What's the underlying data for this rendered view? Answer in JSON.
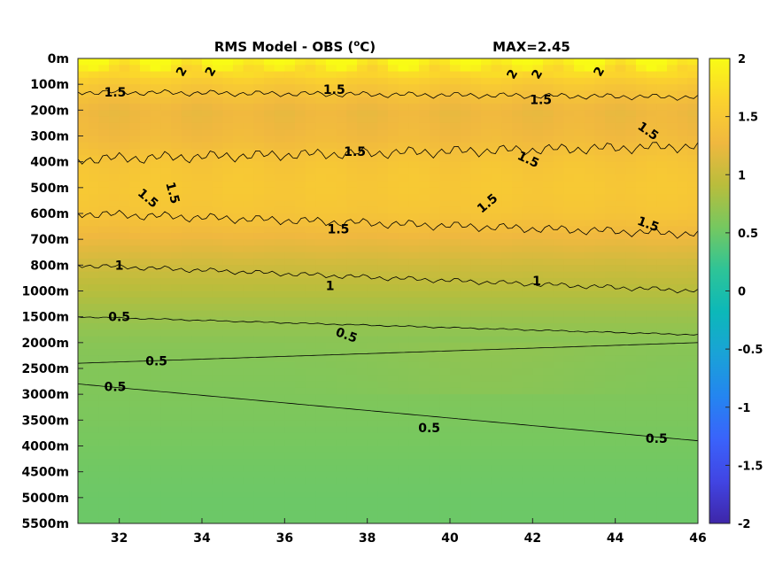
{
  "chart_data": {
    "type": "heatmap",
    "title": "RMS Model - OBS (",
    "title_unit_sup": "o",
    "title_unit_tail": "C)",
    "max_text": "MAX=2.45",
    "x_ticks": [
      32,
      34,
      36,
      38,
      40,
      42,
      44,
      46
    ],
    "xlim": [
      31,
      46
    ],
    "depth_levels": [
      "0m",
      "100m",
      "200m",
      "300m",
      "400m",
      "500m",
      "600m",
      "700m",
      "800m",
      "1000m",
      "1500m",
      "2000m",
      "2500m",
      "3000m",
      "3500m",
      "4000m",
      "4500m",
      "5000m",
      "5500m"
    ],
    "colorbar": {
      "ticks": [
        "2",
        "1.5",
        "1",
        "0.5",
        "0",
        "-0.5",
        "-1",
        "-1.5",
        "-2"
      ],
      "range": [
        -2,
        2
      ],
      "colormap": [
        "#3e26a8",
        "#4145e3",
        "#3a63fb",
        "#2485f0",
        "#1aa2d7",
        "#0cb8b9",
        "#2ec497",
        "#75c860",
        "#b9bd3c",
        "#f0b83f",
        "#fbd22e",
        "#f9fb15"
      ]
    },
    "level_rms": [
      2.0,
      1.5,
      1.25,
      1.3,
      1.45,
      1.5,
      1.45,
      1.25,
      1.05,
      0.9,
      0.75,
      0.65,
      0.62,
      0.6,
      0.58,
      0.55,
      0.52,
      0.5,
      0.5
    ],
    "contour_labels": [
      {
        "text": "2",
        "x": 33.5,
        "depth_index": 0.5,
        "rot": -60
      },
      {
        "text": "2",
        "x": 34.2,
        "depth_index": 0.5,
        "rot": -60
      },
      {
        "text": "2",
        "x": 41.5,
        "depth_index": 0.6,
        "rot": -60
      },
      {
        "text": "2",
        "x": 42.1,
        "depth_index": 0.6,
        "rot": -60
      },
      {
        "text": "2",
        "x": 43.6,
        "depth_index": 0.5,
        "rot": -60
      },
      {
        "text": "1.5",
        "x": 31.9,
        "depth_index": 1.3,
        "rot": 0
      },
      {
        "text": "1.5",
        "x": 37.2,
        "depth_index": 1.2,
        "rot": 0
      },
      {
        "text": "1.5",
        "x": 42.2,
        "depth_index": 1.6,
        "rot": 0
      },
      {
        "text": "1.5",
        "x": 44.8,
        "depth_index": 2.8,
        "rot": 35
      },
      {
        "text": "1.5",
        "x": 37.7,
        "depth_index": 3.6,
        "rot": 0
      },
      {
        "text": "1.5",
        "x": 41.9,
        "depth_index": 3.9,
        "rot": 25
      },
      {
        "text": "1.5",
        "x": 32.7,
        "depth_index": 5.4,
        "rot": 40
      },
      {
        "text": "1.5",
        "x": 33.3,
        "depth_index": 5.2,
        "rot": 75
      },
      {
        "text": "1.5",
        "x": 40.9,
        "depth_index": 5.6,
        "rot": -40
      },
      {
        "text": "1.5",
        "x": 37.3,
        "depth_index": 6.6,
        "rot": 0
      },
      {
        "text": "1.5",
        "x": 44.8,
        "depth_index": 6.4,
        "rot": 20
      },
      {
        "text": "1",
        "x": 32.0,
        "depth_index": 8.0,
        "rot": 0
      },
      {
        "text": "1",
        "x": 37.1,
        "depth_index": 8.8,
        "rot": 0
      },
      {
        "text": "1",
        "x": 42.1,
        "depth_index": 8.6,
        "rot": 0
      },
      {
        "text": "0.5",
        "x": 32.0,
        "depth_index": 10.0,
        "rot": 0
      },
      {
        "text": "0.5",
        "x": 37.5,
        "depth_index": 10.7,
        "rot": 20
      },
      {
        "text": "0.5",
        "x": 32.9,
        "depth_index": 11.7,
        "rot": 0
      },
      {
        "text": "0.5",
        "x": 31.9,
        "depth_index": 12.7,
        "rot": 0
      },
      {
        "text": "0.5",
        "x": 39.5,
        "depth_index": 14.3,
        "rot": 0
      },
      {
        "text": "0.5",
        "x": 45.0,
        "depth_index": 14.7,
        "rot": 0
      }
    ]
  }
}
